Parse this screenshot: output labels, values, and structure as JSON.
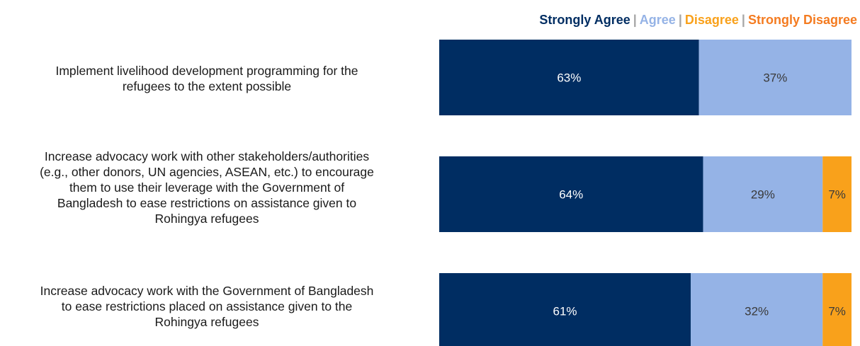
{
  "chart_data": {
    "type": "bar",
    "orientation": "horizontal",
    "stacked": true,
    "categories": [
      "Implement livelihood development programming for the refugees to the extent possible",
      "Increase advocacy work with other stakeholders/authorities (e.g., other donors, UN agencies, ASEAN, etc.) to encourage them to use their leverage with the Government of Bangladesh to ease restrictions on assistance given to Rohingya refugees",
      "Increase advocacy work with the Government of Bangladesh to ease restrictions placed on assistance given to the Rohingya refugees"
    ],
    "category_lines": [
      [
        "Implement livelihood development programming for the",
        "refugees to the extent possible"
      ],
      [
        "Increase advocacy work with other stakeholders/authorities",
        "(e.g., other donors, UN agencies, ASEAN, etc.) to encourage",
        "them to use their leverage with the Government of",
        "Bangladesh to ease restrictions on assistance given to",
        "Rohingya refugees"
      ],
      [
        "Increase advocacy work with the Government of Bangladesh",
        "to ease restrictions placed on assistance given to the",
        "Rohingya refugees"
      ]
    ],
    "series": [
      {
        "name": "Strongly Agree",
        "color": "#002d62",
        "label_color": "#ffffff",
        "values": [
          63,
          64,
          61
        ],
        "labels": [
          "63%",
          "64%",
          "61%"
        ]
      },
      {
        "name": "Agree",
        "color": "#95b3e6",
        "label_color": "#3a3a3a",
        "values": [
          37,
          29,
          32
        ],
        "labels": [
          "37%",
          "29%",
          "32%"
        ]
      },
      {
        "name": "Disagree",
        "color": "#f9a11b",
        "label_color": "#3a3a3a",
        "values": [
          0,
          7,
          7
        ],
        "labels": [
          "",
          "7%",
          "7%"
        ]
      },
      {
        "name": "Strongly Disagree",
        "color": "#f47b20",
        "label_color": "#3a3a3a",
        "values": [
          0,
          0,
          0
        ],
        "labels": [
          "",
          "",
          ""
        ]
      }
    ],
    "legend": {
      "position": "top-right",
      "separator": "|",
      "colors": [
        "#002d62",
        "#95b3e6",
        "#f9a11b",
        "#f47b20"
      ]
    },
    "xlim": [
      0,
      100
    ],
    "grid": false
  }
}
